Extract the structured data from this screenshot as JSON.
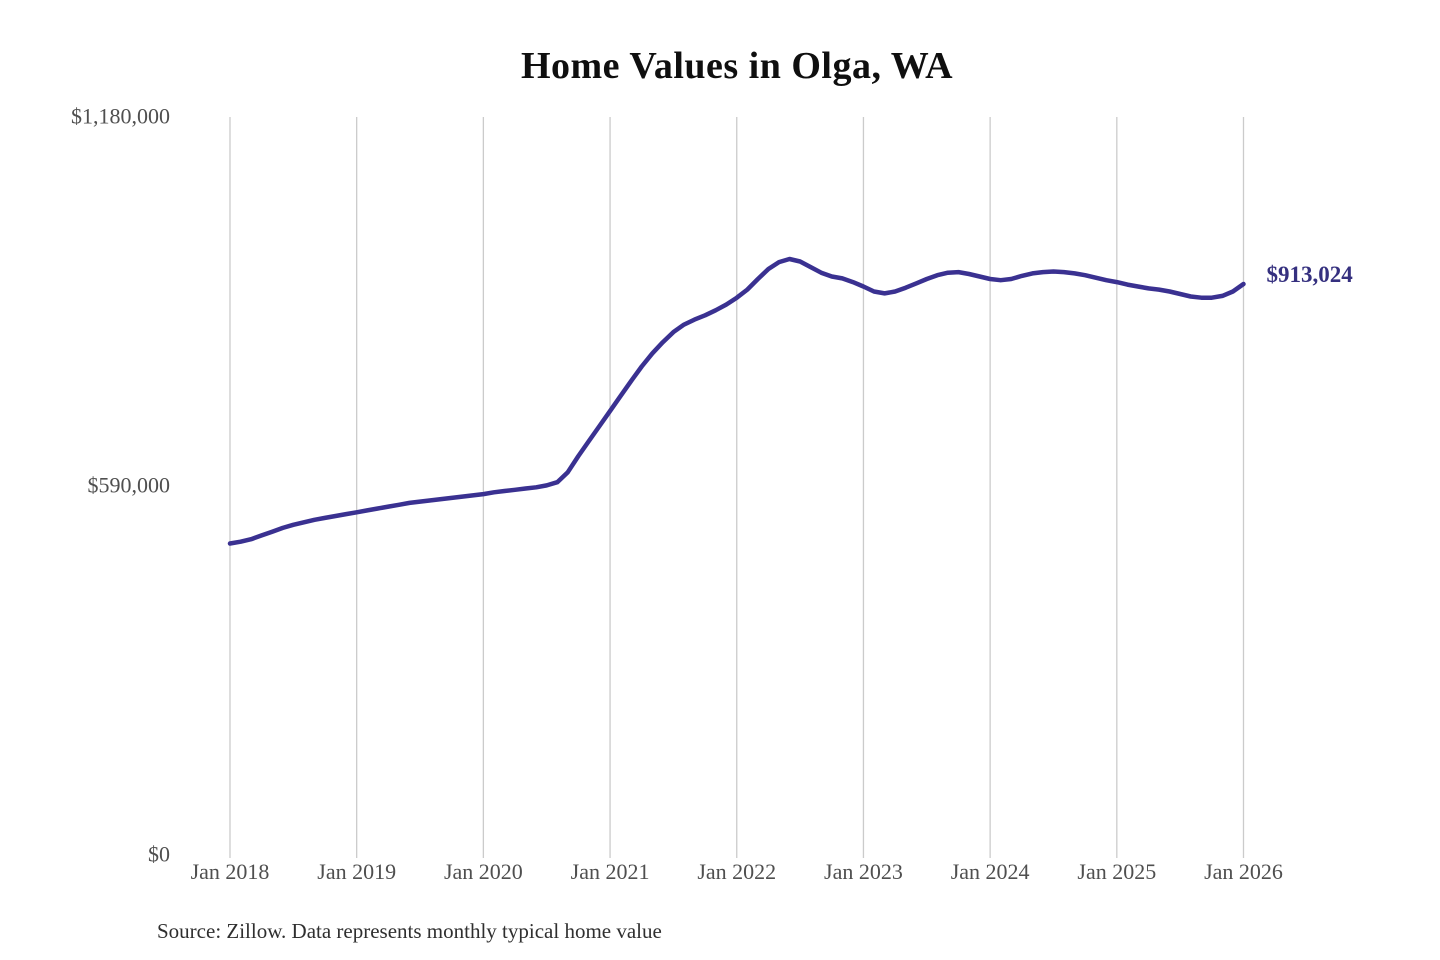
{
  "page": {
    "title": "Home Values in Olga, WA",
    "source_note": "Source: Zillow. Data represents monthly typical home value"
  },
  "chart_data": {
    "type": "line",
    "title": "Home Values in Olga, WA",
    "frequency": "monthly",
    "legend": "none",
    "grid": "vertical-only",
    "xlabel": "",
    "ylabel": "",
    "y_axis_range": [
      0,
      1180000
    ],
    "y_ticks": [
      {
        "label": "$0",
        "value": 0
      },
      {
        "label": "$590,000",
        "value": 590000
      },
      {
        "label": "$1,180,000",
        "value": 1180000
      }
    ],
    "x_tick_labels": [
      "Jan 2018",
      "Jan 2019",
      "Jan 2020",
      "Jan 2021",
      "Jan 2022",
      "Jan 2023",
      "Jan 2024",
      "Jan 2025",
      "Jan 2026"
    ],
    "series": [
      {
        "name": "Monthly typical home value",
        "start": "Jan 2018",
        "end": "Jan 2026",
        "values": [
          498000,
          501000,
          505000,
          511000,
          517000,
          523000,
          528000,
          532000,
          536000,
          539000,
          542000,
          545000,
          548000,
          551000,
          554000,
          557000,
          560000,
          563000,
          565000,
          567000,
          569000,
          571000,
          573000,
          575000,
          577000,
          580000,
          582000,
          584000,
          586000,
          588000,
          591000,
          596000,
          612000,
          638000,
          662000,
          686000,
          710000,
          734000,
          758000,
          781000,
          802000,
          820000,
          836000,
          848000,
          856000,
          863000,
          871000,
          880000,
          891000,
          904000,
          921000,
          937000,
          948000,
          953000,
          949000,
          940000,
          931000,
          925000,
          922000,
          916000,
          909000,
          901000,
          898000,
          901000,
          907000,
          914000,
          921000,
          927000,
          931000,
          932000,
          929000,
          925000,
          921000,
          919000,
          921000,
          926000,
          930000,
          932000,
          933000,
          932000,
          930000,
          927000,
          923000,
          919000,
          916000,
          912000,
          909000,
          906000,
          904000,
          901000,
          897000,
          893000,
          891000,
          891000,
          894000,
          901000,
          913024
        ]
      }
    ],
    "end_label": "$913,024",
    "end_value": 913024,
    "colors": {
      "line": "#3a3191",
      "end_label": "#35307f",
      "grid": "#cbcbcb",
      "axis_text": "#4f4f4f",
      "title": "#0f0f0f",
      "source": "#2f2f2f"
    }
  }
}
